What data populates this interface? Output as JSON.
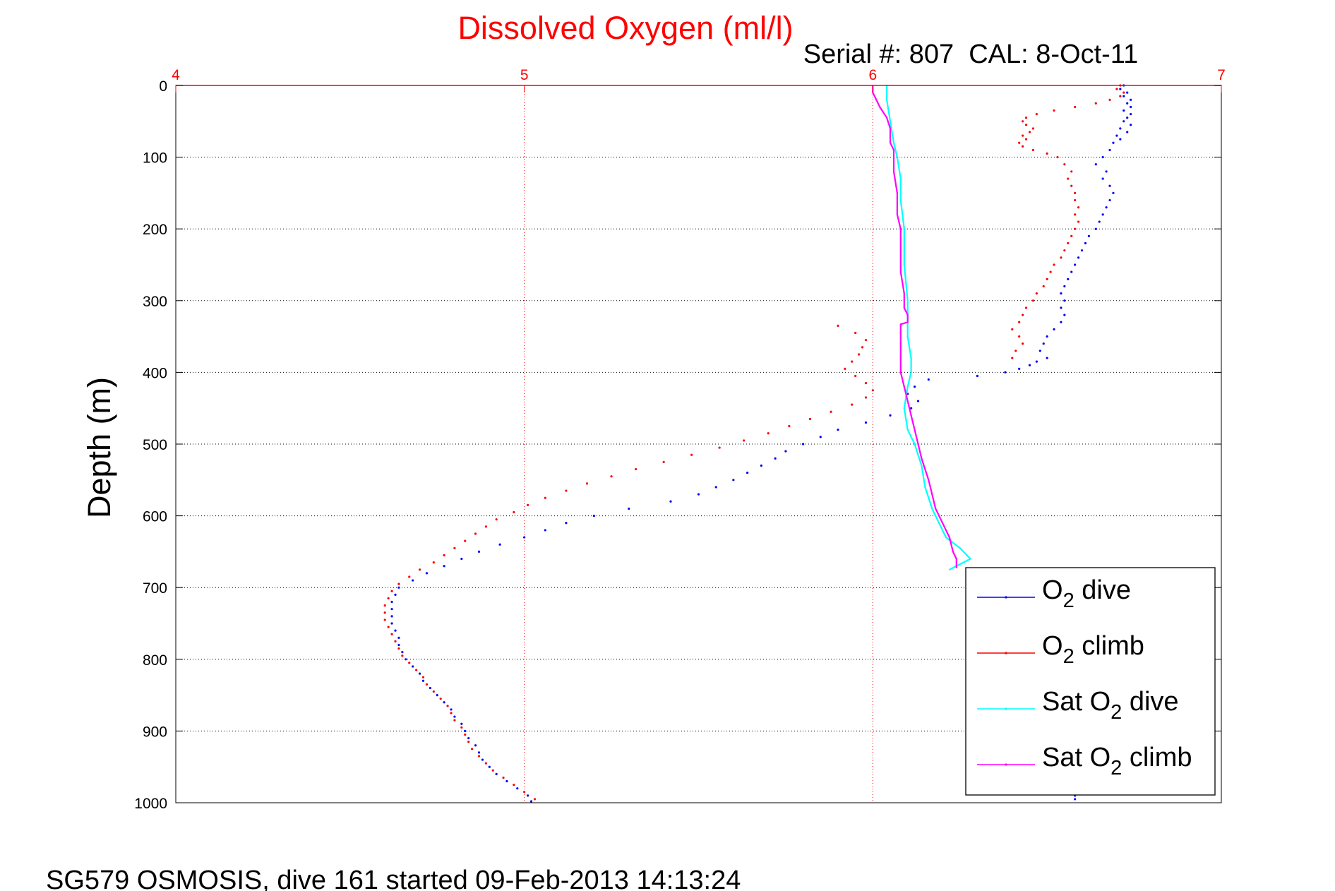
{
  "chart_data": {
    "type": "scatter",
    "title": "Dissolved Oxygen (ml/l)",
    "subtitle": "Serial #: 807  CAL: 8-Oct-11",
    "ylabel": "Depth (m)",
    "footer": "SG579 OSMOSIS, dive 161 started 09-Feb-2013 14:13:24",
    "xlim": [
      4,
      7
    ],
    "ylim": [
      0,
      1000
    ],
    "y_reversed": true,
    "grid": true,
    "x_ticks": [
      "4",
      "5",
      "6",
      "7"
    ],
    "y_ticks": [
      "0",
      "100",
      "200",
      "300",
      "400",
      "500",
      "600",
      "700",
      "800",
      "900",
      "1000"
    ],
    "legend_position": "bottom-right",
    "legend": {
      "o2_dive": {
        "main": "O",
        "sub": "2",
        "tail": " dive"
      },
      "o2_climb": {
        "main": "O",
        "sub": "2",
        "tail": " climb"
      },
      "sat_dive": {
        "main": "Sat O",
        "sub": "2",
        "tail": " dive"
      },
      "sat_climb": {
        "main": "Sat O",
        "sub": "2",
        "tail": " climb"
      }
    },
    "colors": {
      "axis_top": "#ff0000",
      "title": "#ff0000",
      "grid_x": "#ff0000",
      "grid_y": "#000000",
      "o2_dive": "#0000ff",
      "o2_climb": "#ff0000",
      "sat_dive": "#00ffff",
      "sat_climb": "#ff00ff"
    },
    "series": [
      {
        "key": "o2_dive",
        "style": "dots",
        "points": [
          [
            6.72,
            0
          ],
          [
            6.71,
            5
          ],
          [
            6.73,
            10
          ],
          [
            6.72,
            15
          ],
          [
            6.74,
            20
          ],
          [
            6.73,
            25
          ],
          [
            6.74,
            30
          ],
          [
            6.72,
            35
          ],
          [
            6.74,
            40
          ],
          [
            6.73,
            45
          ],
          [
            6.72,
            50
          ],
          [
            6.74,
            55
          ],
          [
            6.71,
            60
          ],
          [
            6.73,
            65
          ],
          [
            6.7,
            70
          ],
          [
            6.71,
            75
          ],
          [
            6.69,
            80
          ],
          [
            6.68,
            90
          ],
          [
            6.66,
            100
          ],
          [
            6.64,
            110
          ],
          [
            6.67,
            120
          ],
          [
            6.66,
            130
          ],
          [
            6.68,
            140
          ],
          [
            6.69,
            150
          ],
          [
            6.68,
            160
          ],
          [
            6.67,
            170
          ],
          [
            6.66,
            180
          ],
          [
            6.65,
            190
          ],
          [
            6.64,
            200
          ],
          [
            6.62,
            210
          ],
          [
            6.61,
            220
          ],
          [
            6.6,
            230
          ],
          [
            6.59,
            240
          ],
          [
            6.58,
            250
          ],
          [
            6.57,
            260
          ],
          [
            6.56,
            270
          ],
          [
            6.55,
            280
          ],
          [
            6.54,
            290
          ],
          [
            6.55,
            300
          ],
          [
            6.54,
            310
          ],
          [
            6.55,
            320
          ],
          [
            6.54,
            330
          ],
          [
            6.52,
            340
          ],
          [
            6.5,
            350
          ],
          [
            6.49,
            360
          ],
          [
            6.48,
            370
          ],
          [
            6.5,
            380
          ],
          [
            6.47,
            385
          ],
          [
            6.45,
            390
          ],
          [
            6.42,
            395
          ],
          [
            6.38,
            400
          ],
          [
            6.3,
            405
          ],
          [
            6.16,
            410
          ],
          [
            6.12,
            420
          ],
          [
            6.1,
            430
          ],
          [
            6.13,
            440
          ],
          [
            6.11,
            450
          ],
          [
            6.05,
            460
          ],
          [
            5.98,
            470
          ],
          [
            5.9,
            480
          ],
          [
            5.85,
            490
          ],
          [
            5.8,
            500
          ],
          [
            5.75,
            510
          ],
          [
            5.72,
            520
          ],
          [
            5.68,
            530
          ],
          [
            5.64,
            540
          ],
          [
            5.6,
            550
          ],
          [
            5.55,
            560
          ],
          [
            5.5,
            570
          ],
          [
            5.42,
            580
          ],
          [
            5.3,
            590
          ],
          [
            5.2,
            600
          ],
          [
            5.12,
            610
          ],
          [
            5.06,
            620
          ],
          [
            5.0,
            630
          ],
          [
            4.93,
            640
          ],
          [
            4.87,
            650
          ],
          [
            4.82,
            660
          ],
          [
            4.77,
            670
          ],
          [
            4.72,
            680
          ],
          [
            4.68,
            690
          ],
          [
            4.64,
            700
          ],
          [
            4.63,
            710
          ],
          [
            4.62,
            720
          ],
          [
            4.62,
            730
          ],
          [
            4.62,
            740
          ],
          [
            4.62,
            750
          ],
          [
            4.63,
            760
          ],
          [
            4.64,
            770
          ],
          [
            4.64,
            780
          ],
          [
            4.65,
            790
          ],
          [
            4.66,
            800
          ],
          [
            4.68,
            810
          ],
          [
            4.7,
            820
          ],
          [
            4.71,
            830
          ],
          [
            4.73,
            840
          ],
          [
            4.75,
            850
          ],
          [
            4.77,
            860
          ],
          [
            4.79,
            870
          ],
          [
            4.8,
            880
          ],
          [
            4.82,
            890
          ],
          [
            4.83,
            900
          ],
          [
            4.84,
            910
          ],
          [
            4.86,
            920
          ],
          [
            4.87,
            930
          ],
          [
            4.88,
            940
          ],
          [
            4.9,
            950
          ],
          [
            4.92,
            960
          ],
          [
            4.95,
            970
          ],
          [
            4.98,
            980
          ],
          [
            5.01,
            990
          ],
          [
            5.02,
            998
          ],
          [
            6.58,
            990
          ],
          [
            6.58,
            995
          ]
        ]
      },
      {
        "key": "o2_climb",
        "style": "dots",
        "points": [
          [
            6.71,
            0
          ],
          [
            6.7,
            5
          ],
          [
            6.72,
            10
          ],
          [
            6.71,
            15
          ],
          [
            6.68,
            20
          ],
          [
            6.64,
            25
          ],
          [
            6.58,
            30
          ],
          [
            6.52,
            35
          ],
          [
            6.47,
            40
          ],
          [
            6.44,
            45
          ],
          [
            6.43,
            50
          ],
          [
            6.44,
            55
          ],
          [
            6.46,
            60
          ],
          [
            6.45,
            65
          ],
          [
            6.43,
            70
          ],
          [
            6.44,
            75
          ],
          [
            6.42,
            80
          ],
          [
            6.43,
            85
          ],
          [
            6.46,
            90
          ],
          [
            6.5,
            95
          ],
          [
            6.53,
            100
          ],
          [
            6.55,
            110
          ],
          [
            6.57,
            120
          ],
          [
            6.56,
            130
          ],
          [
            6.57,
            140
          ],
          [
            6.58,
            150
          ],
          [
            6.58,
            160
          ],
          [
            6.59,
            170
          ],
          [
            6.58,
            180
          ],
          [
            6.59,
            190
          ],
          [
            6.58,
            200
          ],
          [
            6.57,
            210
          ],
          [
            6.56,
            220
          ],
          [
            6.55,
            230
          ],
          [
            6.54,
            240
          ],
          [
            6.52,
            250
          ],
          [
            6.51,
            260
          ],
          [
            6.5,
            270
          ],
          [
            6.49,
            280
          ],
          [
            6.47,
            290
          ],
          [
            6.46,
            300
          ],
          [
            6.44,
            310
          ],
          [
            6.43,
            320
          ],
          [
            6.42,
            330
          ],
          [
            6.4,
            340
          ],
          [
            6.42,
            350
          ],
          [
            6.43,
            360
          ],
          [
            6.41,
            370
          ],
          [
            6.4,
            380
          ],
          [
            5.9,
            335
          ],
          [
            5.95,
            345
          ],
          [
            5.98,
            355
          ],
          [
            5.97,
            365
          ],
          [
            5.96,
            375
          ],
          [
            5.94,
            385
          ],
          [
            5.92,
            395
          ],
          [
            5.95,
            405
          ],
          [
            5.98,
            415
          ],
          [
            6.0,
            425
          ],
          [
            5.98,
            435
          ],
          [
            5.94,
            445
          ],
          [
            5.88,
            455
          ],
          [
            5.82,
            465
          ],
          [
            5.76,
            475
          ],
          [
            5.7,
            485
          ],
          [
            5.63,
            495
          ],
          [
            5.56,
            505
          ],
          [
            5.48,
            515
          ],
          [
            5.4,
            525
          ],
          [
            5.32,
            535
          ],
          [
            5.25,
            545
          ],
          [
            5.18,
            555
          ],
          [
            5.12,
            565
          ],
          [
            5.06,
            575
          ],
          [
            5.01,
            585
          ],
          [
            4.97,
            595
          ],
          [
            4.92,
            605
          ],
          [
            4.89,
            615
          ],
          [
            4.86,
            625
          ],
          [
            4.83,
            635
          ],
          [
            4.8,
            645
          ],
          [
            4.77,
            655
          ],
          [
            4.74,
            665
          ],
          [
            4.7,
            675
          ],
          [
            4.67,
            685
          ],
          [
            4.64,
            695
          ],
          [
            4.62,
            705
          ],
          [
            4.61,
            715
          ],
          [
            4.6,
            725
          ],
          [
            4.6,
            735
          ],
          [
            4.6,
            745
          ],
          [
            4.61,
            755
          ],
          [
            4.62,
            765
          ],
          [
            4.63,
            775
          ],
          [
            4.64,
            785
          ],
          [
            4.65,
            795
          ],
          [
            4.67,
            805
          ],
          [
            4.69,
            815
          ],
          [
            4.71,
            825
          ],
          [
            4.72,
            835
          ],
          [
            4.74,
            845
          ],
          [
            4.76,
            855
          ],
          [
            4.78,
            865
          ],
          [
            4.79,
            875
          ],
          [
            4.8,
            885
          ],
          [
            4.82,
            895
          ],
          [
            4.83,
            905
          ],
          [
            4.84,
            915
          ],
          [
            4.85,
            925
          ],
          [
            4.87,
            935
          ],
          [
            4.89,
            945
          ],
          [
            4.91,
            955
          ],
          [
            4.94,
            965
          ],
          [
            4.97,
            975
          ],
          [
            5.0,
            985
          ],
          [
            5.03,
            995
          ]
        ]
      },
      {
        "key": "sat_dive",
        "style": "line",
        "points": [
          [
            6.04,
            0
          ],
          [
            6.04,
            20
          ],
          [
            6.05,
            50
          ],
          [
            6.06,
            80
          ],
          [
            6.07,
            100
          ],
          [
            6.08,
            130
          ],
          [
            6.08,
            160
          ],
          [
            6.09,
            200
          ],
          [
            6.09,
            250
          ],
          [
            6.1,
            300
          ],
          [
            6.1,
            350
          ],
          [
            6.11,
            380
          ],
          [
            6.11,
            400
          ],
          [
            6.1,
            420
          ],
          [
            6.09,
            450
          ],
          [
            6.1,
            480
          ],
          [
            6.12,
            500
          ],
          [
            6.14,
            530
          ],
          [
            6.15,
            560
          ],
          [
            6.17,
            590
          ],
          [
            6.19,
            610
          ],
          [
            6.21,
            630
          ],
          [
            6.25,
            645
          ],
          [
            6.28,
            660
          ],
          [
            6.24,
            670
          ],
          [
            6.22,
            675
          ]
        ]
      },
      {
        "key": "sat_climb",
        "style": "line",
        "points": [
          [
            6.0,
            0
          ],
          [
            6.0,
            10
          ],
          [
            6.01,
            20
          ],
          [
            6.02,
            30
          ],
          [
            6.04,
            45
          ],
          [
            6.05,
            60
          ],
          [
            6.05,
            70
          ],
          [
            6.05,
            80
          ],
          [
            6.06,
            90
          ],
          [
            6.06,
            100
          ],
          [
            6.06,
            120
          ],
          [
            6.07,
            150
          ],
          [
            6.07,
            180
          ],
          [
            6.08,
            200
          ],
          [
            6.08,
            230
          ],
          [
            6.08,
            260
          ],
          [
            6.09,
            290
          ],
          [
            6.09,
            310
          ],
          [
            6.1,
            320
          ],
          [
            6.1,
            330
          ],
          [
            6.08,
            333
          ],
          [
            6.08,
            345
          ],
          [
            6.08,
            360
          ],
          [
            6.08,
            380
          ],
          [
            6.08,
            400
          ],
          [
            6.09,
            420
          ],
          [
            6.1,
            440
          ],
          [
            6.11,
            460
          ],
          [
            6.12,
            480
          ],
          [
            6.13,
            500
          ],
          [
            6.14,
            520
          ],
          [
            6.16,
            550
          ],
          [
            6.17,
            570
          ],
          [
            6.18,
            590
          ],
          [
            6.2,
            610
          ],
          [
            6.22,
            630
          ],
          [
            6.23,
            650
          ],
          [
            6.24,
            660
          ],
          [
            6.24,
            672
          ]
        ]
      }
    ]
  }
}
